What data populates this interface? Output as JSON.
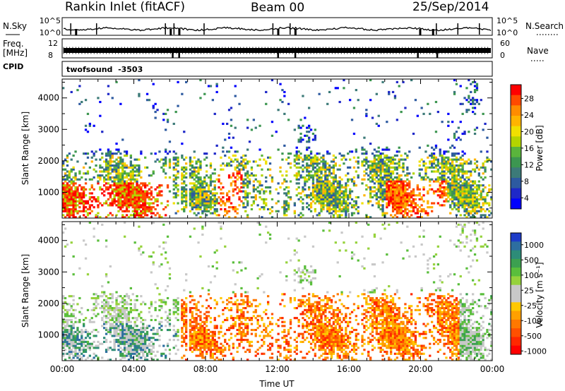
{
  "header": {
    "station": "Rankin Inlet (fitACF)",
    "beam": "Beam 00",
    "date": "25/Sep/2014"
  },
  "chart_data": [
    {
      "type": "line",
      "name": "noise-panel",
      "left_label": "N.Sky",
      "right_label": "N.Search",
      "left_ticks": [
        "10^5",
        "10^0"
      ],
      "right_ticks": [
        "10^5",
        "10^0"
      ],
      "y_scale": "log",
      "ylim": [
        1,
        100000
      ]
    },
    {
      "type": "bar",
      "name": "frequency-panel",
      "left_label_1": "Freq.",
      "left_label_2": "[MHz]",
      "right_label": "Nave",
      "left_ticks": [
        "12",
        "8"
      ],
      "right_ticks": [
        "60",
        "0"
      ]
    },
    {
      "type": "table",
      "name": "cpid-panel",
      "label": "CPID",
      "value": "twofsound  -3503"
    },
    {
      "type": "heatmap",
      "name": "power-panel",
      "ylabel": "Slant Range [km]",
      "y_ticks": [
        "1000",
        "2000",
        "3000",
        "4000"
      ],
      "ylim": [
        180,
        4600
      ],
      "xlim": [
        0,
        24
      ],
      "colorbar": {
        "label": "Power [dB]",
        "ticks": [
          "28",
          "24",
          "20",
          "16",
          "12",
          "8",
          "4"
        ],
        "colors": [
          "#ff0000",
          "#ff4a00",
          "#ff8c00",
          "#ffb400",
          "#f0e000",
          "#b4d400",
          "#5ab43c",
          "#3c9650",
          "#3c7a78",
          "#2d5aa0",
          "#1e28c8",
          "#0000ff"
        ]
      }
    },
    {
      "type": "heatmap",
      "name": "velocity-panel",
      "ylabel": "Slant Range [km]",
      "xlabel": "Time UT",
      "y_ticks": [
        "1000",
        "2000",
        "3000",
        "4000"
      ],
      "x_ticks": [
        "00:00",
        "04:00",
        "08:00",
        "12:00",
        "16:00",
        "20:00",
        "00:00"
      ],
      "ylim": [
        180,
        4600
      ],
      "xlim": [
        0,
        24
      ],
      "colorbar": {
        "label": "Velocity [m s⁻¹]",
        "ticks": [
          "1000",
          "500",
          "100",
          "25",
          "-25",
          "-100",
          "-500",
          "-1000"
        ],
        "colors": [
          "#1e3cc8",
          "#2d6ea0",
          "#2d8c78",
          "#3ca050",
          "#5abe3c",
          "#96d23c",
          "#c8c8c8",
          "#c8c8c8",
          "#ffc800",
          "#ffa000",
          "#ff7800",
          "#ff5000",
          "#ff2800",
          "#ff0000"
        ]
      }
    }
  ]
}
